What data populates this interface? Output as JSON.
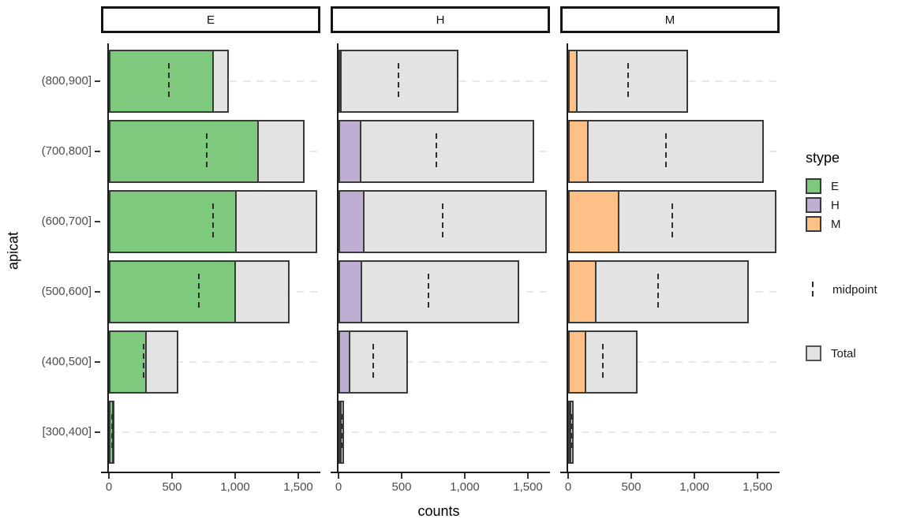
{
  "chart_data": {
    "type": "bar",
    "orientation": "horizontal",
    "xlabel": "counts",
    "ylabel": "apicat",
    "xlim": [
      0,
      1700
    ],
    "grid": "dashed-horizontal",
    "legend_position": "right",
    "categories": [
      "(800,900]",
      "(700,800]",
      "(600,700]",
      "(500,600]",
      "(400,500]",
      "[300,400]"
    ],
    "x_ticks": [
      0,
      500,
      1000,
      1500
    ],
    "x_tick_labels": [
      "0",
      "500",
      "1,000",
      "1,500"
    ],
    "total": {
      "name": "Total",
      "color": "#e3e3e3",
      "values": [
        950,
        1550,
        1650,
        1430,
        550,
        45
      ]
    },
    "midpoint": {
      "name": "midpoint",
      "values": [
        475,
        775,
        825,
        715,
        275,
        22
      ]
    },
    "facets": [
      {
        "label": "E",
        "color": "#7fc97f",
        "values": [
          830,
          1190,
          1010,
          1005,
          300,
          40
        ]
      },
      {
        "label": "H",
        "color": "#beaed4",
        "values": [
          20,
          180,
          205,
          190,
          95,
          5
        ]
      },
      {
        "label": "M",
        "color": "#fdc086",
        "values": [
          75,
          160,
          405,
          225,
          145,
          5
        ]
      }
    ],
    "legend": {
      "title": "stype",
      "stype_entries": [
        "E",
        "H",
        "M"
      ],
      "midpoint_label": "midpoint",
      "total_label": "Total"
    }
  }
}
